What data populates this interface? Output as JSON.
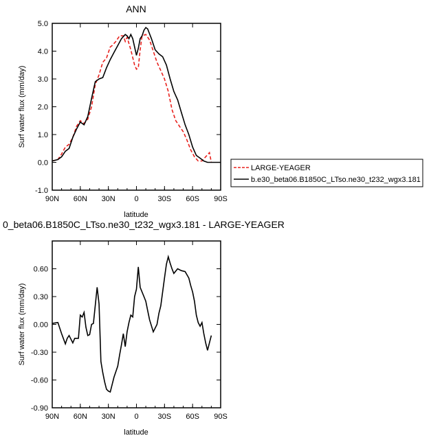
{
  "chart_data": [
    {
      "type": "line",
      "title": "ANN",
      "xlabel": "latitude",
      "ylabel": "Surf water flux (mm/day)",
      "xlim": [
        90,
        -90
      ],
      "ylim": [
        -1.0,
        5.0
      ],
      "xticks": [
        90,
        60,
        30,
        0,
        -30,
        -60,
        -90
      ],
      "xtick_labels": [
        "90N",
        "60N",
        "30N",
        "0",
        "30S",
        "60S",
        "90S"
      ],
      "yticks": [
        -1.0,
        0.0,
        1.0,
        2.0,
        3.0,
        4.0,
        5.0
      ],
      "ytick_labels": [
        "-1.0",
        "0.0",
        "1.0",
        "2.0",
        "3.0",
        "4.0",
        "5.0"
      ],
      "legend": "right",
      "series": [
        {
          "name": "LARGE-YEAGER",
          "color": "#e8201c",
          "dash": "dashed",
          "x": [
            90,
            84,
            80,
            76,
            72,
            68,
            64,
            60,
            56,
            52,
            48,
            44,
            40,
            36,
            32,
            28,
            26,
            22,
            18,
            14,
            12,
            10,
            6,
            2,
            0,
            -2,
            -4,
            -6,
            -10,
            -14,
            -18,
            -22,
            -26,
            -30,
            -34,
            -38,
            -42,
            -46,
            -50,
            -54,
            -58,
            -62,
            -66,
            -70,
            -74,
            -78,
            -80
          ],
          "y": [
            0.05,
            0.1,
            0.3,
            0.55,
            0.65,
            0.9,
            1.3,
            1.5,
            1.4,
            1.55,
            2.0,
            2.8,
            3.15,
            3.6,
            3.75,
            4.15,
            4.2,
            4.35,
            4.55,
            4.55,
            4.35,
            4.5,
            4.05,
            3.5,
            3.35,
            3.4,
            4.05,
            4.55,
            4.6,
            4.4,
            4.0,
            3.6,
            3.3,
            3.0,
            2.55,
            1.9,
            1.5,
            1.3,
            1.1,
            0.8,
            0.45,
            0.2,
            0.05,
            0.05,
            0.2,
            0.35,
            0.0
          ]
        },
        {
          "name": "b.e30_beta06.B1850C_LTso.ne30_t232_wgx3.181",
          "color": "#000000",
          "dash": "solid",
          "x": [
            90,
            84,
            80,
            76,
            72,
            68,
            64,
            60,
            56,
            52,
            48,
            44,
            40,
            36,
            32,
            28,
            24,
            20,
            16,
            12,
            10,
            8,
            6,
            4,
            2,
            0,
            -2,
            -4,
            -6,
            -8,
            -10,
            -12,
            -16,
            -20,
            -24,
            -28,
            -32,
            -36,
            -40,
            -44,
            -48,
            -52,
            -56,
            -60,
            -64,
            -68,
            -72,
            -76,
            -80,
            -84,
            -90
          ],
          "y": [
            0.05,
            0.1,
            0.2,
            0.4,
            0.5,
            0.9,
            1.2,
            1.45,
            1.35,
            1.65,
            2.3,
            2.9,
            3.0,
            3.05,
            3.4,
            3.7,
            3.95,
            4.2,
            4.45,
            4.6,
            4.55,
            4.45,
            4.6,
            4.45,
            4.15,
            3.85,
            4.1,
            4.45,
            4.55,
            4.75,
            4.85,
            4.8,
            4.45,
            4.05,
            3.9,
            3.8,
            3.5,
            3.0,
            2.55,
            2.25,
            1.8,
            1.35,
            1.0,
            0.55,
            0.25,
            0.15,
            0.05,
            0.0,
            0.0,
            0.0,
            0.0
          ]
        }
      ]
    },
    {
      "type": "line",
      "title": "0_beta06.B1850C_LTso.ne30_t232_wgx3.181 - LARGE-YEAGER",
      "xlabel": "latitude",
      "ylabel": "Surf water flux (mm/day)",
      "xlim": [
        90,
        -90
      ],
      "ylim": [
        -0.9,
        0.9
      ],
      "xticks": [
        90,
        60,
        30,
        0,
        -30,
        -60,
        -90
      ],
      "xtick_labels": [
        "90N",
        "60N",
        "30N",
        "0",
        "30S",
        "60S",
        "90S"
      ],
      "yticks": [
        -0.9,
        -0.6,
        -0.3,
        0.0,
        0.3,
        0.6
      ],
      "ytick_labels": [
        "-0.90",
        "-0.60",
        "-0.30",
        "0.00",
        "0.30",
        "0.60"
      ],
      "series": [
        {
          "name": "",
          "color": "#000000",
          "dash": "solid",
          "x": [
            90,
            84,
            80,
            76,
            74,
            72,
            68,
            66,
            62,
            60,
            58,
            56,
            54,
            52,
            50,
            48,
            46,
            42,
            40,
            38,
            36,
            34,
            32,
            30,
            28,
            26,
            24,
            20,
            18,
            16,
            14,
            12,
            10,
            8,
            6,
            4,
            2,
            0,
            -2,
            -4,
            -8,
            -10,
            -12,
            -14,
            -18,
            -22,
            -24,
            -26,
            -30,
            -32,
            -34,
            -36,
            -38,
            -40,
            -44,
            -48,
            -52,
            -56,
            -58,
            -60,
            -62,
            -64,
            -66,
            -68,
            -70,
            -72,
            -74,
            -76,
            -80
          ],
          "y": [
            0.01,
            0.02,
            -0.1,
            -0.21,
            -0.15,
            -0.12,
            -0.2,
            -0.15,
            -0.15,
            0.1,
            0.08,
            0.13,
            -0.03,
            -0.12,
            -0.11,
            0.0,
            0.01,
            0.4,
            0.22,
            -0.4,
            -0.52,
            -0.62,
            -0.7,
            -0.72,
            -0.73,
            -0.65,
            -0.57,
            -0.45,
            -0.33,
            -0.22,
            -0.1,
            -0.24,
            -0.08,
            0.02,
            0.1,
            0.08,
            0.3,
            0.38,
            0.62,
            0.4,
            0.3,
            0.25,
            0.15,
            0.05,
            -0.08,
            0.0,
            0.12,
            0.2,
            0.5,
            0.65,
            0.73,
            0.66,
            0.6,
            0.55,
            0.6,
            0.58,
            0.57,
            0.5,
            0.42,
            0.35,
            0.25,
            0.1,
            0.02,
            -0.02,
            0.02,
            -0.1,
            -0.2,
            -0.28,
            -0.12
          ]
        }
      ]
    }
  ]
}
